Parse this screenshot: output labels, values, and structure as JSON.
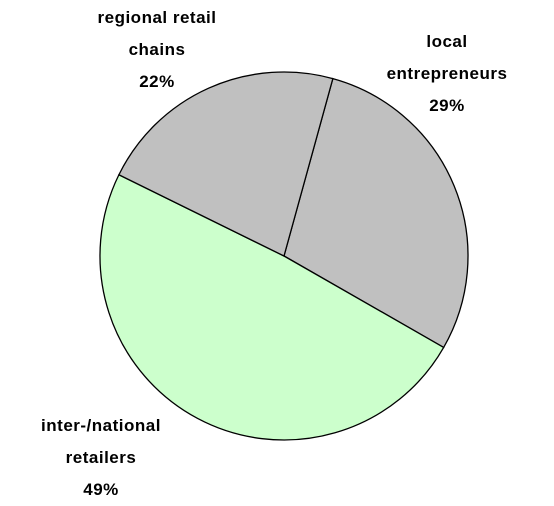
{
  "chart_data": {
    "type": "pie",
    "categories": [
      "local\nentrepreneurs",
      "inter-/national\nretailers",
      "regional retail\nchains"
    ],
    "values": [
      29,
      49,
      22
    ],
    "value_labels": [
      "29%",
      "49%",
      "22%"
    ],
    "colors": [
      "#c0c0c0",
      "#ccffcc",
      "#c0c0c0"
    ]
  }
}
